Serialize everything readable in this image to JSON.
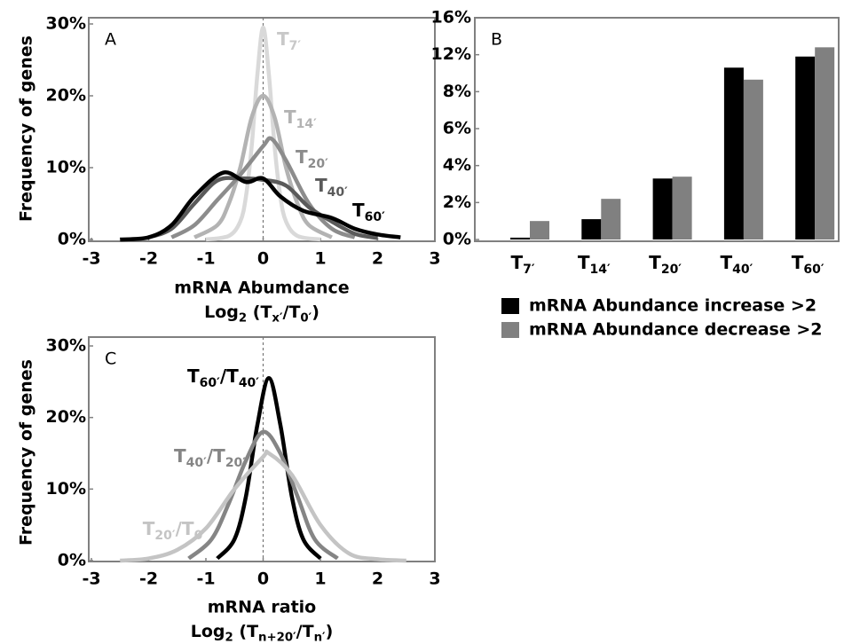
{
  "chart_data": [
    {
      "type": "line",
      "annotation": "A",
      "ylabel": "Frequency of genes",
      "xlabel": "mRNA Abumdance",
      "xlabel2": [
        "Log",
        "2",
        " (T",
        "x′",
        "/T",
        "0′",
        ")"
      ],
      "xlim": [
        -3,
        3
      ],
      "xticks": [
        -3,
        -2,
        -1,
        0,
        1,
        2,
        3
      ],
      "ylim": [
        0,
        30
      ],
      "yticks": [
        {
          "value": 0,
          "label": "0%"
        },
        {
          "value": 10,
          "label": "10%"
        },
        {
          "value": 20,
          "label": "20%"
        },
        {
          "value": 30,
          "label": "30%"
        }
      ],
      "vline": 0,
      "series": [
        {
          "label": [
            "T",
            "7′"
          ],
          "color": "#d9d9d9",
          "x": [
            -1,
            -0.6,
            -0.4,
            -0.3,
            -0.2,
            -0.1,
            0,
            0.1,
            0.2,
            0.3,
            0.4,
            0.6,
            1
          ],
          "values": [
            0,
            0.5,
            2.5,
            6,
            13,
            23,
            29.5,
            23,
            13,
            6,
            2.5,
            0.5,
            0
          ]
        },
        {
          "label": [
            "T",
            "14′"
          ],
          "color": "#b3b3b3",
          "x": [
            -1.2,
            -0.8,
            -0.6,
            -0.4,
            -0.2,
            0,
            0.2,
            0.4,
            0.6,
            0.8,
            1.2
          ],
          "values": [
            0.3,
            2,
            5,
            10,
            17,
            20,
            17,
            10,
            5,
            2,
            0.3
          ]
        },
        {
          "label": [
            "T",
            "20′"
          ],
          "color": "#8c8c8c",
          "x": [
            -1.6,
            -1.2,
            -0.8,
            -0.4,
            0,
            0.15,
            0.4,
            0.8,
            1.2,
            1.6
          ],
          "values": [
            0.3,
            2,
            5.5,
            9,
            13,
            14,
            11,
            5,
            1.5,
            0.3
          ]
        },
        {
          "label": [
            "T",
            "40′"
          ],
          "color": "#5a5a5a",
          "x": [
            -2,
            -1.6,
            -1.2,
            -0.8,
            -0.4,
            0,
            0.4,
            0.8,
            1.2,
            1.6,
            2
          ],
          "values": [
            0.3,
            1.5,
            5,
            8.2,
            8.5,
            8.3,
            7.5,
            4.5,
            2.5,
            0.8,
            0.2
          ]
        },
        {
          "label": [
            "T",
            "60′"
          ],
          "color": "#000000",
          "x": [
            -2.5,
            -2,
            -1.6,
            -1.2,
            -0.7,
            -0.3,
            0,
            0.3,
            0.7,
            1.2,
            1.6,
            2,
            2.4
          ],
          "values": [
            0,
            0.3,
            2,
            6,
            9.3,
            8,
            8.5,
            6,
            4,
            3,
            1.5,
            0.7,
            0.3
          ]
        }
      ]
    },
    {
      "type": "bar",
      "annotation": "B",
      "categories": [
        [
          "T",
          "7′"
        ],
        [
          "T",
          "14′"
        ],
        [
          "T",
          "20′"
        ],
        [
          "T",
          "40′"
        ],
        [
          "T",
          "60′"
        ]
      ],
      "ylim": [
        0,
        16
      ],
      "y_scale": "piecewise",
      "yticks": [
        {
          "value": 0,
          "label": "0%"
        },
        {
          "value": 2,
          "label": "2%"
        },
        {
          "value": 4,
          "label": "4%"
        },
        {
          "value": 6,
          "label": "6%"
        },
        {
          "value": 8,
          "label": "8%"
        },
        {
          "value": 12,
          "label": "12%"
        },
        {
          "value": 16,
          "label": "16%"
        }
      ],
      "legend": "below",
      "series": [
        {
          "name": "mRNA Abundance increase >2",
          "color": "#000000",
          "values": [
            0.1,
            1.1,
            3.3,
            10.6,
            11.8
          ]
        },
        {
          "name": "mRNA Abundance decrease >2",
          "color": "#808080",
          "values": [
            1.0,
            2.2,
            3.4,
            9.3,
            12.8
          ]
        }
      ]
    },
    {
      "type": "line",
      "annotation": "C",
      "ylabel": "Frequency of genes",
      "xlabel": "mRNA ratio",
      "xlabel2": [
        "Log",
        "2",
        " (T",
        "n+20′",
        "/T",
        "n′",
        ")"
      ],
      "xlim": [
        -3,
        3
      ],
      "xticks": [
        -3,
        -2,
        -1,
        0,
        1,
        2,
        3
      ],
      "ylim": [
        0,
        30
      ],
      "yticks": [
        {
          "value": 0,
          "label": "0%"
        },
        {
          "value": 10,
          "label": "10%"
        },
        {
          "value": 20,
          "label": "20%"
        },
        {
          "value": 30,
          "label": "30%"
        }
      ],
      "vline": 0,
      "series": [
        {
          "label": [
            "T",
            "60′",
            "/T",
            "40′"
          ],
          "color": "#000000",
          "x": [
            -0.8,
            -0.5,
            -0.3,
            -0.1,
            0.1,
            0.3,
            0.5,
            0.7,
            1.0
          ],
          "values": [
            0.3,
            3,
            9,
            19,
            25.5,
            19,
            9,
            3,
            0.3
          ]
        },
        {
          "label": [
            "T",
            "40′",
            "/T",
            "20′"
          ],
          "color": "#858585",
          "x": [
            -1.3,
            -0.9,
            -0.6,
            -0.3,
            0,
            0.3,
            0.6,
            0.9,
            1.3
          ],
          "values": [
            0.3,
            3,
            8,
            14,
            18,
            15,
            9,
            3,
            0.3
          ]
        },
        {
          "label": [
            "T",
            "20′",
            "/T",
            "0′"
          ],
          "color": "#c4c4c4",
          "x": [
            -2.5,
            -2,
            -1.5,
            -1,
            -0.5,
            0,
            0.1,
            0.5,
            1,
            1.5,
            2,
            2.5
          ],
          "values": [
            0,
            0.3,
            1.5,
            4.5,
            10,
            14.5,
            15,
            12,
            5,
            1,
            0.2,
            0
          ]
        }
      ]
    }
  ]
}
